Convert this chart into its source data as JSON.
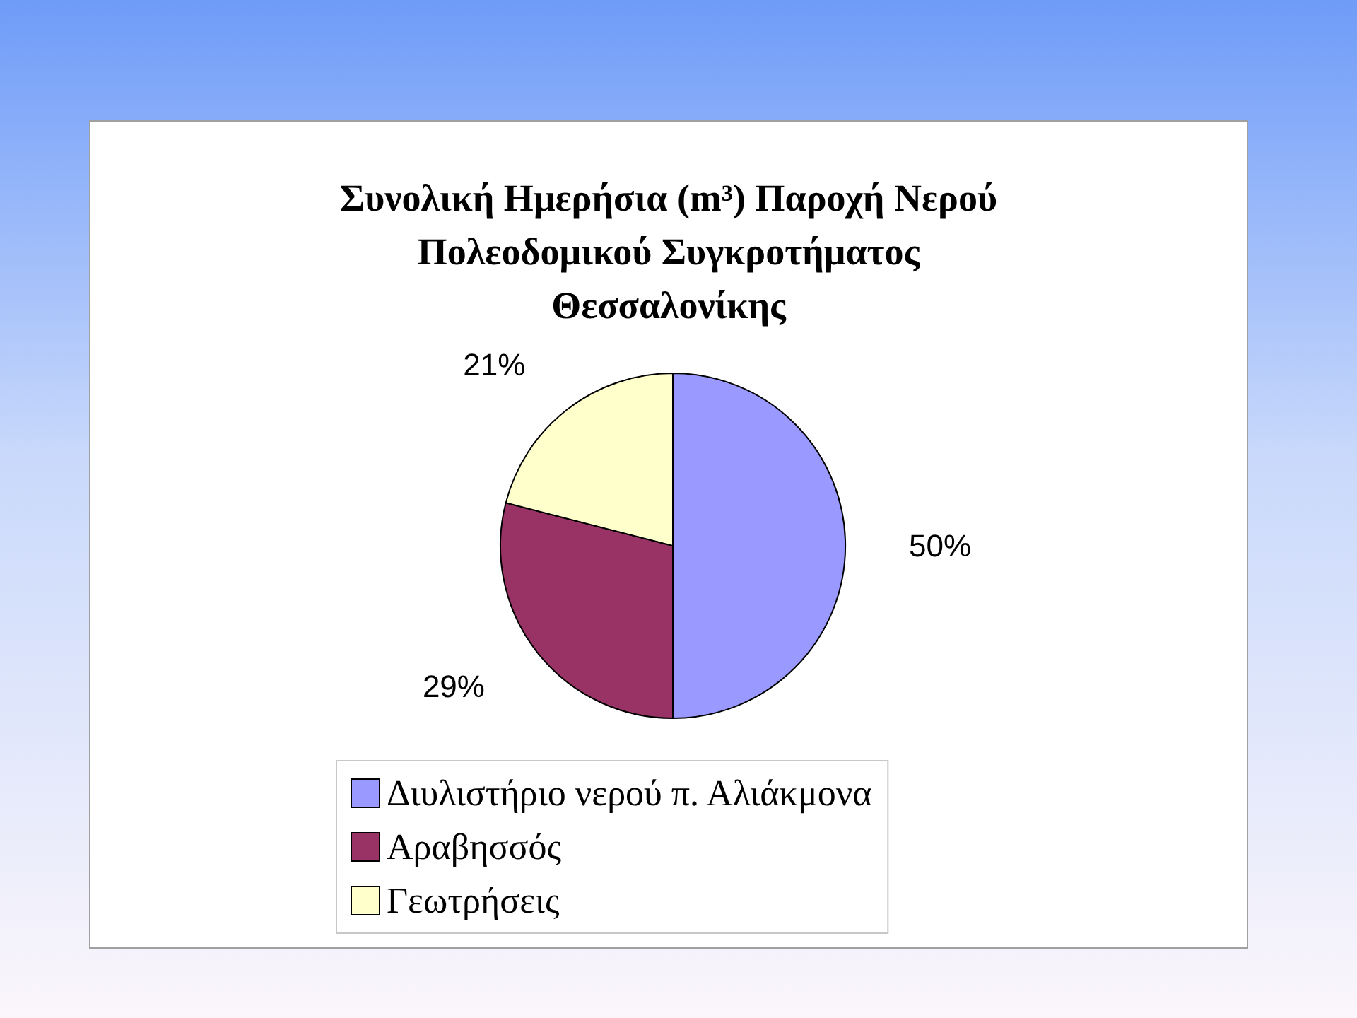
{
  "chart_data": {
    "type": "pie",
    "title": "Συνολική Ημερήσια (m³) Παροχή Νερού\nΠολεοδομικού Συγκροτήματος\nΘεσσαλονίκης",
    "categories": [
      "Διυλιστήριο νερού π. Αλιάκμονα",
      "Αραβησσός",
      "Γεωτρήσεις"
    ],
    "values": [
      50,
      29,
      21
    ],
    "colors": [
      "#9999ff",
      "#993366",
      "#ffffcc"
    ],
    "value_labels": [
      "50%",
      "29%",
      "21%"
    ],
    "legend": "bottom"
  }
}
